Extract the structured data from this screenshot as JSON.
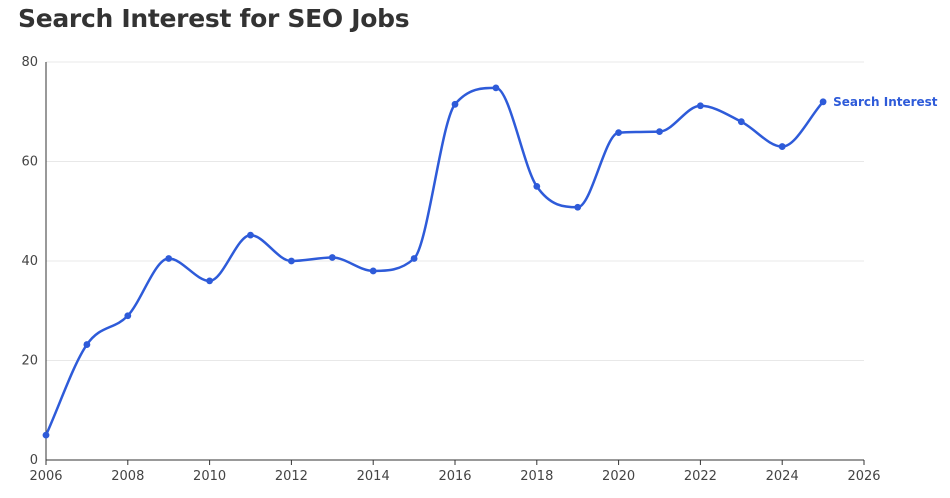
{
  "title": "Search Interest for SEO Jobs",
  "chart_data": {
    "type": "line",
    "title": "Search Interest for SEO Jobs",
    "xlabel": "",
    "ylabel": "",
    "xlim": [
      2006,
      2026
    ],
    "ylim": [
      0,
      80
    ],
    "x_ticks": [
      2006,
      2008,
      2010,
      2012,
      2014,
      2016,
      2018,
      2020,
      2022,
      2024,
      2026
    ],
    "y_ticks": [
      0,
      20,
      40,
      60,
      80
    ],
    "grid": true,
    "legend": "end-of-line label",
    "x": [
      2006,
      2007,
      2008,
      2009,
      2010,
      2011,
      2012,
      2013,
      2014,
      2015,
      2016,
      2017,
      2018,
      2019,
      2020,
      2021,
      2022,
      2023,
      2024,
      2025
    ],
    "series": [
      {
        "name": "Search Interest",
        "color": "#2e5bd9",
        "values": [
          5,
          23.2,
          29,
          40.5,
          36,
          45.2,
          40,
          40.7,
          38,
          40.5,
          71.5,
          74.8,
          55,
          50.8,
          65.8,
          66,
          71.2,
          68,
          63,
          72
        ]
      }
    ]
  }
}
